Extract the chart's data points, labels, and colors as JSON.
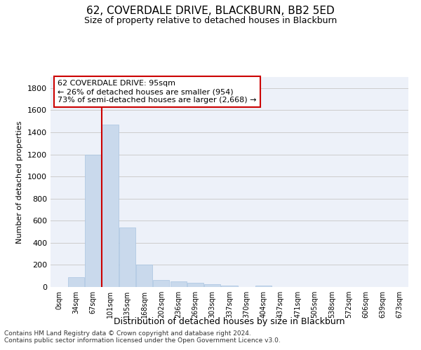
{
  "title": "62, COVERDALE DRIVE, BLACKBURN, BB2 5ED",
  "subtitle": "Size of property relative to detached houses in Blackburn",
  "xlabel": "Distribution of detached houses by size in Blackburn",
  "ylabel": "Number of detached properties",
  "bar_labels": [
    "0sqm",
    "34sqm",
    "67sqm",
    "101sqm",
    "135sqm",
    "168sqm",
    "202sqm",
    "236sqm",
    "269sqm",
    "303sqm",
    "337sqm",
    "370sqm",
    "404sqm",
    "437sqm",
    "471sqm",
    "505sqm",
    "538sqm",
    "572sqm",
    "606sqm",
    "639sqm",
    "673sqm"
  ],
  "bar_values": [
    0,
    90,
    1200,
    1470,
    540,
    205,
    65,
    48,
    35,
    28,
    10,
    0,
    10,
    0,
    0,
    0,
    0,
    0,
    0,
    0,
    0
  ],
  "bar_color": "#c9d9ec",
  "bar_edge_color": "#a8c4e0",
  "grid_color": "#cccccc",
  "vline_x": 2.5,
  "vline_color": "#cc0000",
  "annotation_text": "62 COVERDALE DRIVE: 95sqm\n← 26% of detached houses are smaller (954)\n73% of semi-detached houses are larger (2,668) →",
  "annotation_box_color": "#cc0000",
  "ylim": [
    0,
    1900
  ],
  "yticks": [
    0,
    200,
    400,
    600,
    800,
    1000,
    1200,
    1400,
    1600,
    1800
  ],
  "footnote1": "Contains HM Land Registry data © Crown copyright and database right 2024.",
  "footnote2": "Contains public sector information licensed under the Open Government Licence v3.0.",
  "background_color": "#edf1f9"
}
